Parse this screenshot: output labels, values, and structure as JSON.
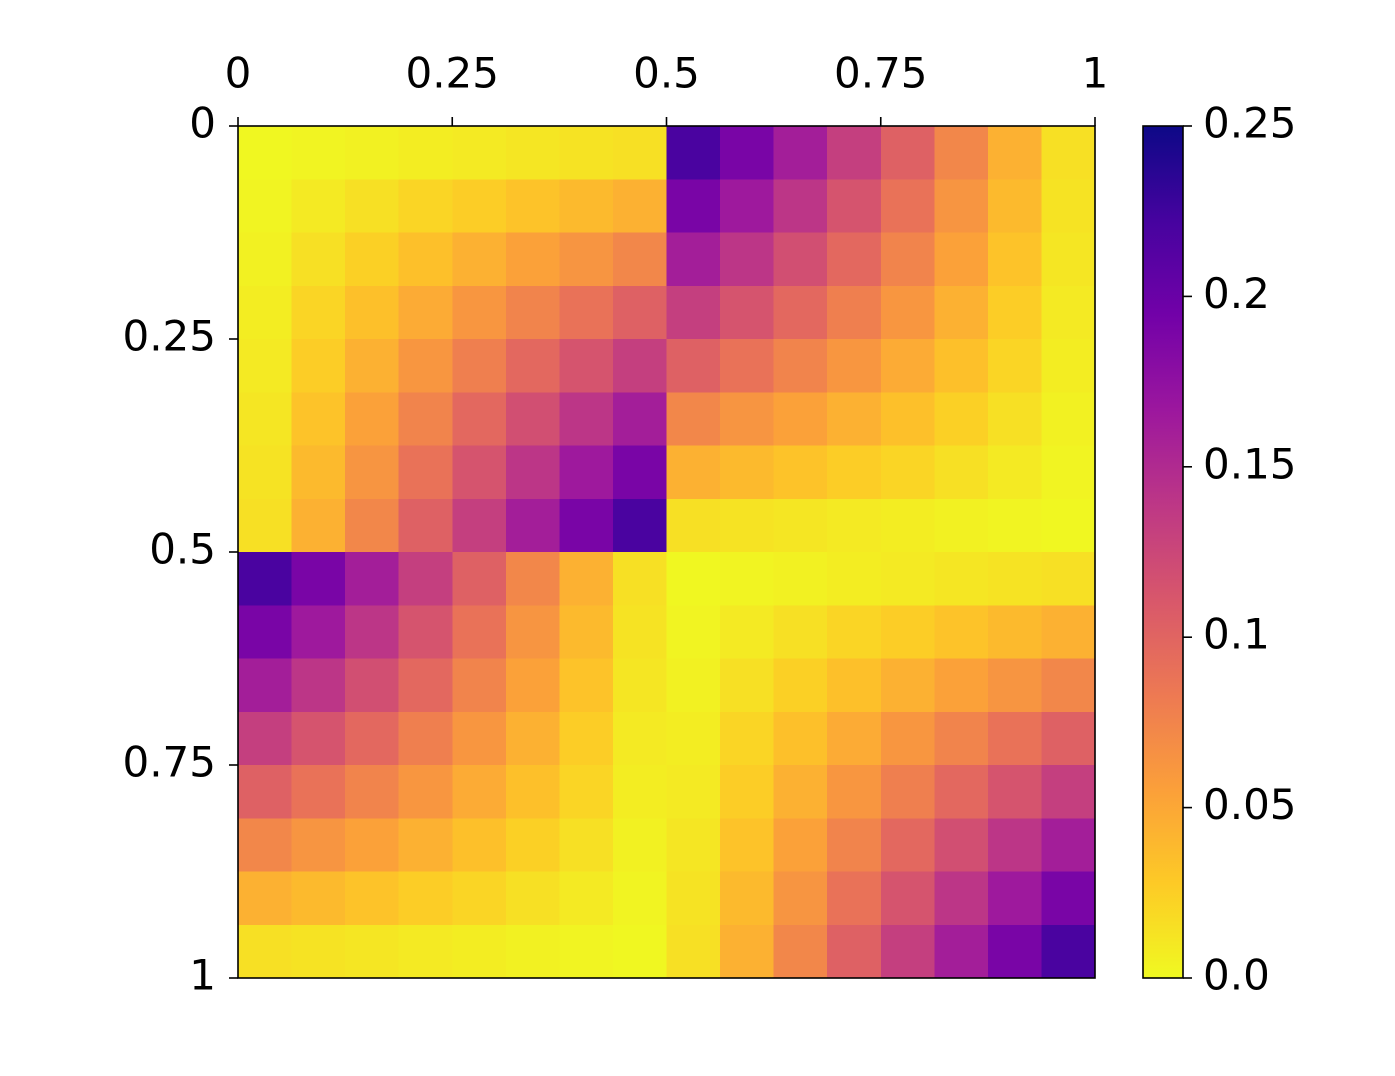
{
  "chart_data": {
    "type": "heatmap",
    "colormap": "plasma_r",
    "xlim": [
      0,
      1
    ],
    "ylim": [
      0,
      1
    ],
    "y_inverted": true,
    "x_axis_position": "top",
    "xticks": [
      0,
      0.25,
      0.5,
      0.75,
      1
    ],
    "yticks": [
      0,
      0.25,
      0.5,
      0.75,
      1
    ],
    "clim": [
      0,
      0.25
    ],
    "cticks": [
      {
        "value": 0,
        "label": "0.0"
      },
      0.05,
      0.1,
      0.15,
      0.2,
      0.25
    ],
    "z": [
      [
        0.001,
        0.003,
        0.005,
        0.007,
        0.009,
        0.011,
        0.013,
        0.015,
        0.22,
        0.19,
        0.161,
        0.132,
        0.103,
        0.073,
        0.044,
        0.015
      ],
      [
        0.003,
        0.009,
        0.015,
        0.021,
        0.026,
        0.032,
        0.038,
        0.044,
        0.19,
        0.165,
        0.14,
        0.114,
        0.089,
        0.063,
        0.038,
        0.013
      ],
      [
        0.005,
        0.015,
        0.024,
        0.034,
        0.044,
        0.054,
        0.063,
        0.073,
        0.161,
        0.14,
        0.118,
        0.097,
        0.075,
        0.054,
        0.032,
        0.011
      ],
      [
        0.007,
        0.021,
        0.034,
        0.048,
        0.062,
        0.075,
        0.089,
        0.103,
        0.132,
        0.114,
        0.097,
        0.079,
        0.062,
        0.044,
        0.026,
        0.009
      ],
      [
        0.009,
        0.026,
        0.044,
        0.062,
        0.079,
        0.097,
        0.114,
        0.132,
        0.103,
        0.089,
        0.075,
        0.062,
        0.048,
        0.034,
        0.021,
        0.007
      ],
      [
        0.011,
        0.032,
        0.054,
        0.075,
        0.097,
        0.118,
        0.14,
        0.161,
        0.073,
        0.063,
        0.054,
        0.044,
        0.034,
        0.024,
        0.015,
        0.005
      ],
      [
        0.013,
        0.038,
        0.063,
        0.089,
        0.114,
        0.14,
        0.165,
        0.19,
        0.044,
        0.038,
        0.032,
        0.026,
        0.021,
        0.015,
        0.009,
        0.003
      ],
      [
        0.015,
        0.044,
        0.073,
        0.103,
        0.132,
        0.161,
        0.19,
        0.22,
        0.015,
        0.013,
        0.011,
        0.009,
        0.007,
        0.005,
        0.003,
        0.001
      ],
      [
        0.22,
        0.19,
        0.161,
        0.132,
        0.103,
        0.073,
        0.044,
        0.015,
        0.001,
        0.003,
        0.005,
        0.007,
        0.009,
        0.011,
        0.013,
        0.015
      ],
      [
        0.19,
        0.165,
        0.14,
        0.114,
        0.089,
        0.063,
        0.038,
        0.013,
        0.003,
        0.009,
        0.015,
        0.021,
        0.026,
        0.032,
        0.038,
        0.044
      ],
      [
        0.161,
        0.14,
        0.118,
        0.097,
        0.075,
        0.054,
        0.032,
        0.011,
        0.005,
        0.015,
        0.024,
        0.034,
        0.044,
        0.054,
        0.063,
        0.073
      ],
      [
        0.132,
        0.114,
        0.097,
        0.079,
        0.062,
        0.044,
        0.026,
        0.009,
        0.007,
        0.021,
        0.034,
        0.048,
        0.062,
        0.075,
        0.089,
        0.103
      ],
      [
        0.103,
        0.089,
        0.075,
        0.062,
        0.048,
        0.034,
        0.021,
        0.007,
        0.009,
        0.026,
        0.044,
        0.062,
        0.079,
        0.097,
        0.114,
        0.132
      ],
      [
        0.073,
        0.063,
        0.054,
        0.044,
        0.034,
        0.024,
        0.015,
        0.005,
        0.011,
        0.032,
        0.054,
        0.075,
        0.097,
        0.118,
        0.14,
        0.161
      ],
      [
        0.044,
        0.038,
        0.032,
        0.026,
        0.021,
        0.015,
        0.009,
        0.003,
        0.013,
        0.038,
        0.063,
        0.089,
        0.114,
        0.14,
        0.165,
        0.19
      ],
      [
        0.015,
        0.013,
        0.011,
        0.009,
        0.007,
        0.005,
        0.003,
        0.001,
        0.015,
        0.044,
        0.073,
        0.103,
        0.132,
        0.161,
        0.19,
        0.22
      ]
    ]
  }
}
